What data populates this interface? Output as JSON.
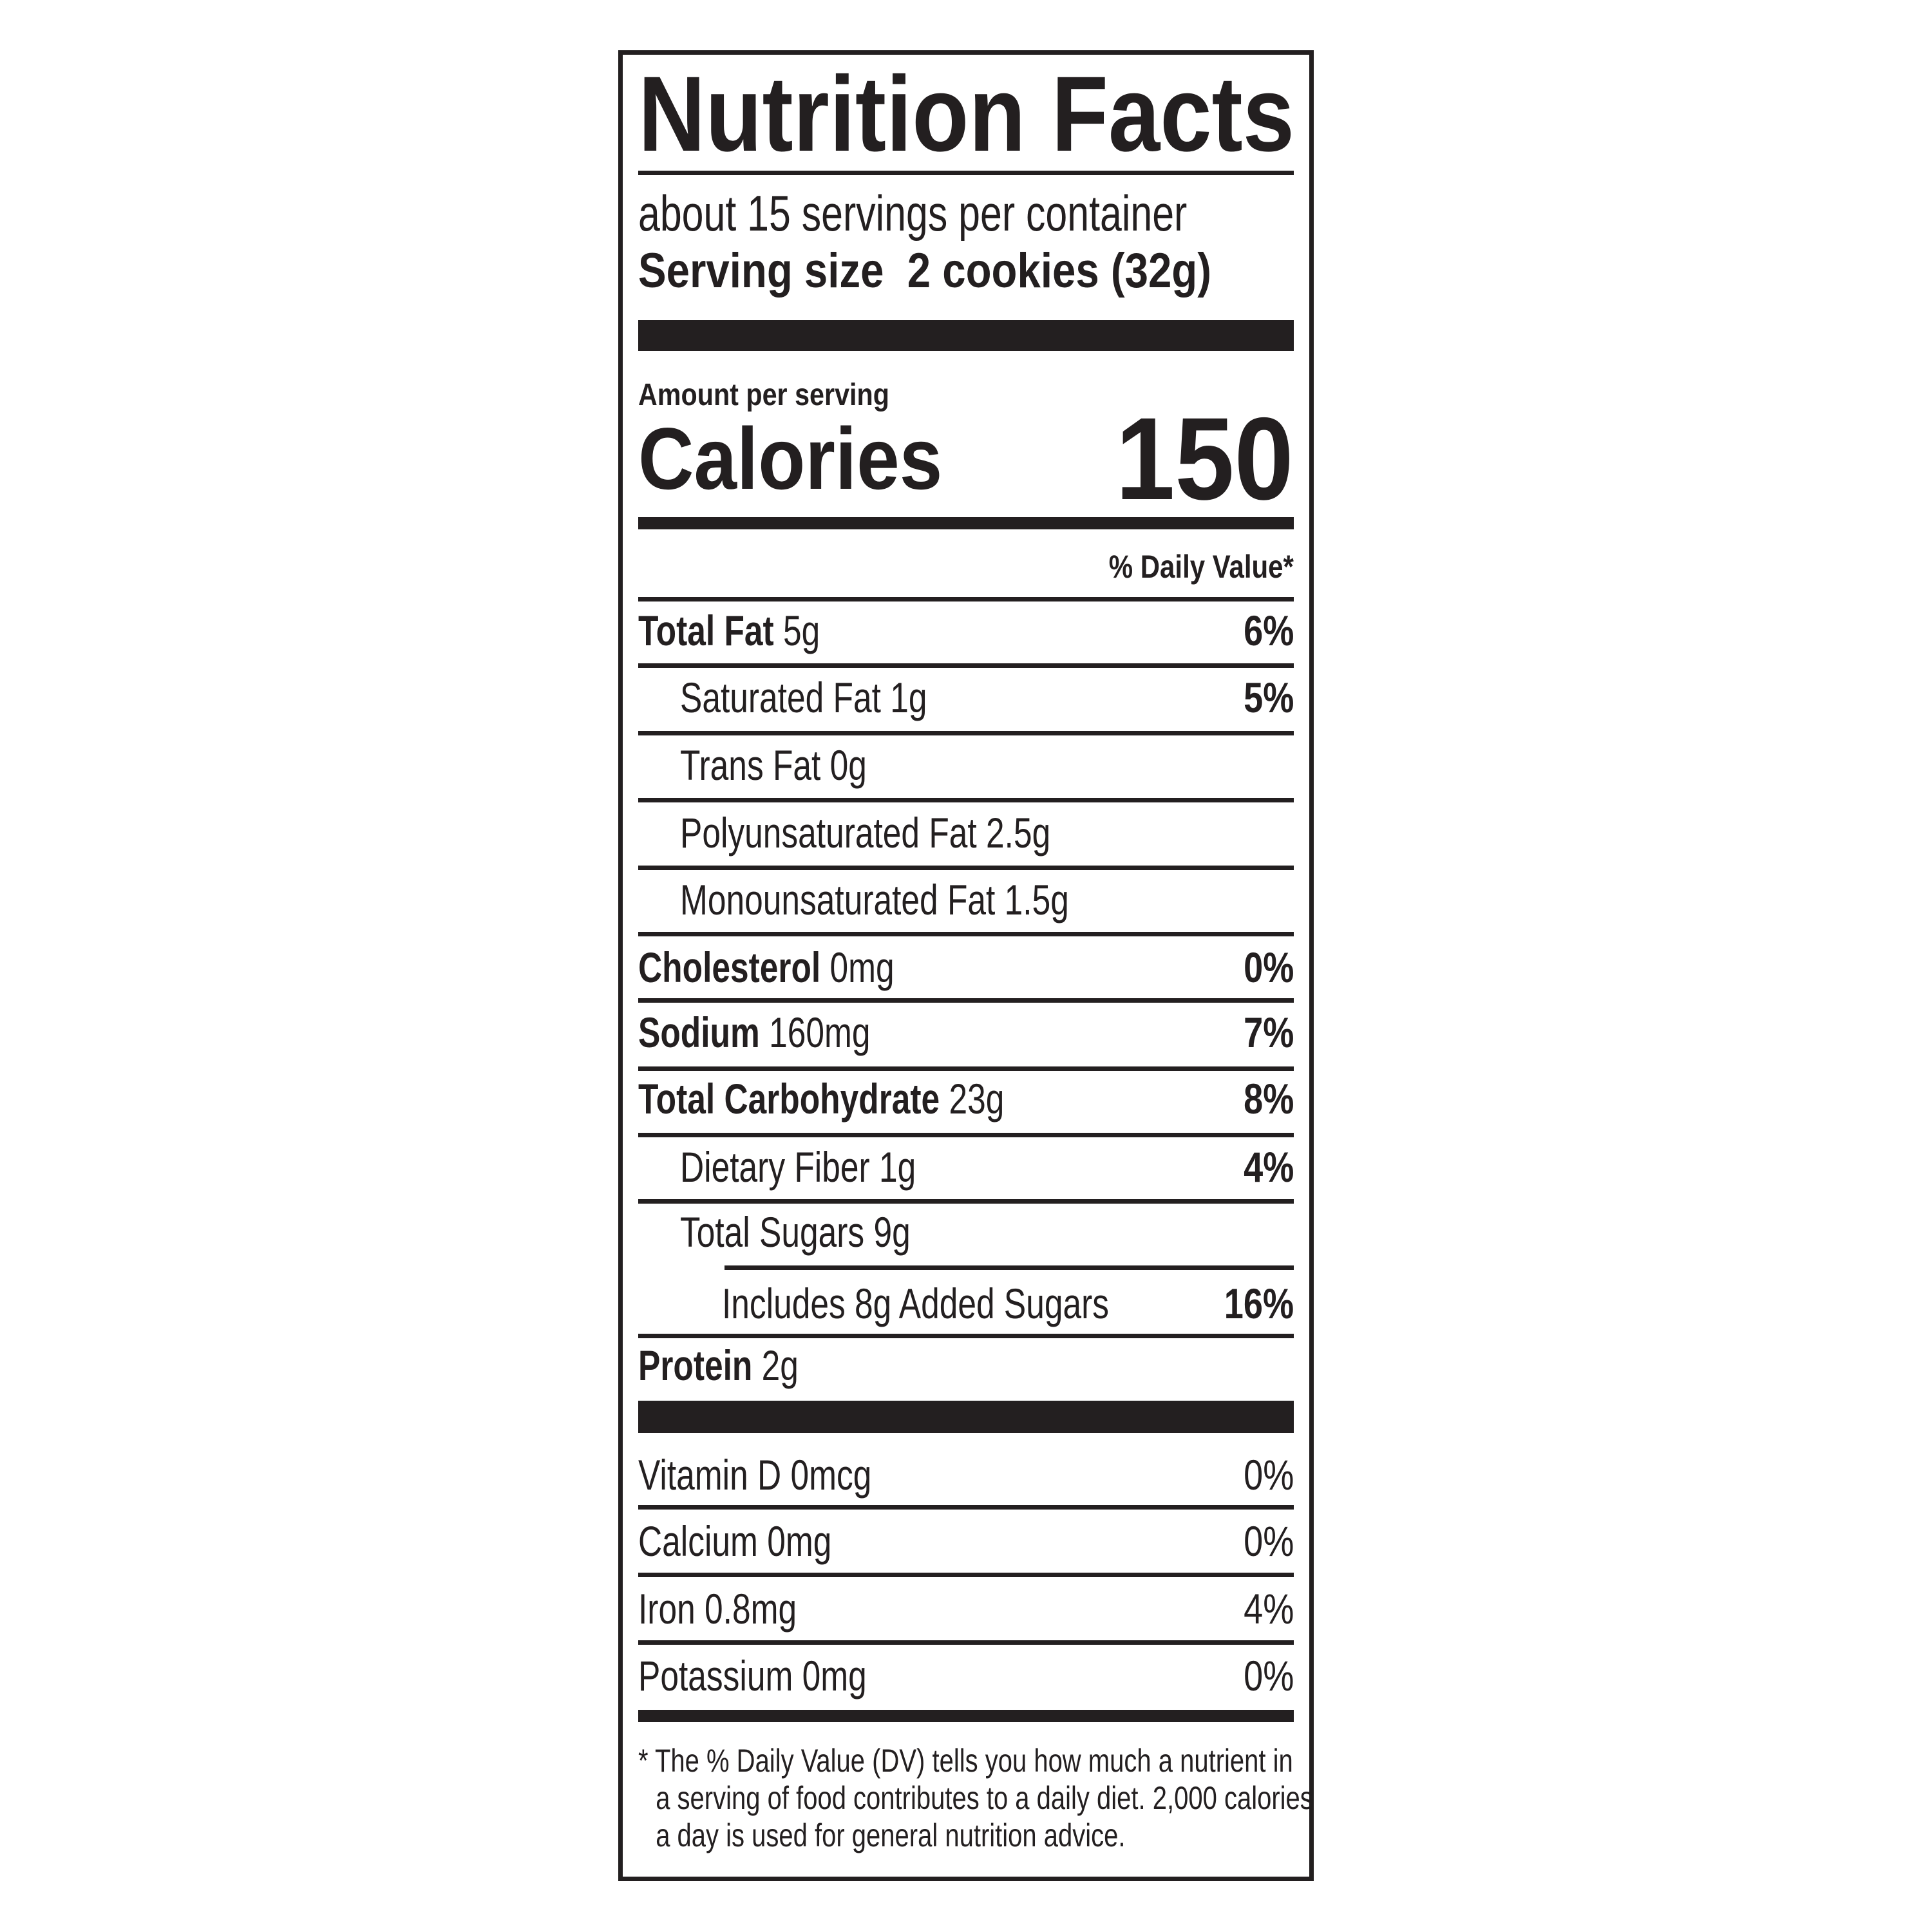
{
  "label": {
    "title": "Nutrition Facts",
    "servings_per_container": "about 15 servings per container",
    "serving_size_label": "Serving size",
    "serving_size_value": "2 cookies (32g)",
    "amount_per_serving": "Amount per serving",
    "calories_label": "Calories",
    "calories_value": "150",
    "daily_value_header": "% Daily Value*",
    "nutrients": [
      {
        "name": "Total Fat",
        "amount": "5g",
        "dv": "6%"
      },
      {
        "name": "Saturated Fat",
        "amount": "1g",
        "dv": "5%"
      },
      {
        "name": "Trans Fat",
        "amount": "0g",
        "dv": ""
      },
      {
        "name": "Polyunsaturated Fat",
        "amount": "2.5g",
        "dv": ""
      },
      {
        "name": "Monounsaturated Fat",
        "amount": "1.5g",
        "dv": ""
      },
      {
        "name": "Cholesterol",
        "amount": "0mg",
        "dv": "0%"
      },
      {
        "name": "Sodium",
        "amount": "160mg",
        "dv": "7%"
      },
      {
        "name": "Total Carbohydrate",
        "amount": "23g",
        "dv": "8%"
      },
      {
        "name": "Dietary Fiber",
        "amount": "1g",
        "dv": "4%"
      },
      {
        "name": "Total Sugars",
        "amount": "9g",
        "dv": ""
      },
      {
        "name": "Includes 8g Added Sugars",
        "amount": "",
        "dv": "16%"
      },
      {
        "name": "Protein",
        "amount": "2g",
        "dv": ""
      }
    ],
    "vitamins": [
      {
        "name": "Vitamin D 0mcg",
        "dv": "0%"
      },
      {
        "name": "Calcium 0mg",
        "dv": "0%"
      },
      {
        "name": "Iron 0.8mg",
        "dv": "4%"
      },
      {
        "name": "Potassium 0mg",
        "dv": "0%"
      }
    ],
    "footnote": [
      "* The % Daily Value (DV) tells you how much a nutrient in",
      "a serving of food contributes to a daily diet. 2,000 calories",
      "a day is used for general nutrition advice."
    ]
  }
}
